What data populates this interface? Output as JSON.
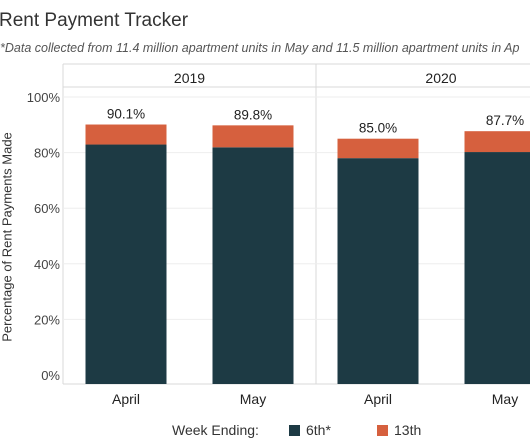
{
  "title": "Rent Payment Tracker",
  "subtitle": "*Data collected from 11.4 million apartment units in May and 11.5 million apartment units in Ap",
  "chart_data": {
    "type": "bar",
    "stacked": true,
    "ylabel": "Percentage of Rent Payments Made",
    "ylim": [
      0,
      100
    ],
    "y_ticks": [
      "0%",
      "20%",
      "40%",
      "60%",
      "80%",
      "100%"
    ],
    "panels": [
      {
        "header": "2019",
        "categories": [
          "April",
          "May"
        ],
        "series": [
          {
            "name": "6th*",
            "values": [
              82.9,
              81.9
            ]
          },
          {
            "name": "13th",
            "values": [
              7.2,
              7.9
            ]
          }
        ],
        "labels": [
          "90.1%",
          "89.8%"
        ]
      },
      {
        "header": "2020",
        "categories": [
          "April",
          "May"
        ],
        "series": [
          {
            "name": "6th*",
            "values": [
              78.0,
              80.2
            ]
          },
          {
            "name": "13th",
            "values": [
              7.0,
              7.5
            ]
          }
        ],
        "labels": [
          "85.0%",
          "87.7%"
        ]
      }
    ],
    "legend": {
      "title": "Week Ending:",
      "position": "bottom"
    },
    "colors": {
      "6th*": "#1d3a44",
      "13th": "#d6603e"
    },
    "grid": true
  }
}
